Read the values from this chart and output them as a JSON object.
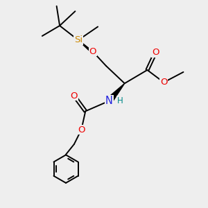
{
  "bg_color": "#eeeeee",
  "bond_color": "#000000",
  "bond_width": 1.4,
  "atom_colors": {
    "O": "#ee0000",
    "N": "#2222dd",
    "Si": "#cc8800",
    "H": "#008888",
    "C": "#000000"
  },
  "font_size": 8.5,
  "figsize": [
    3.0,
    3.0
  ],
  "dpi": 100
}
